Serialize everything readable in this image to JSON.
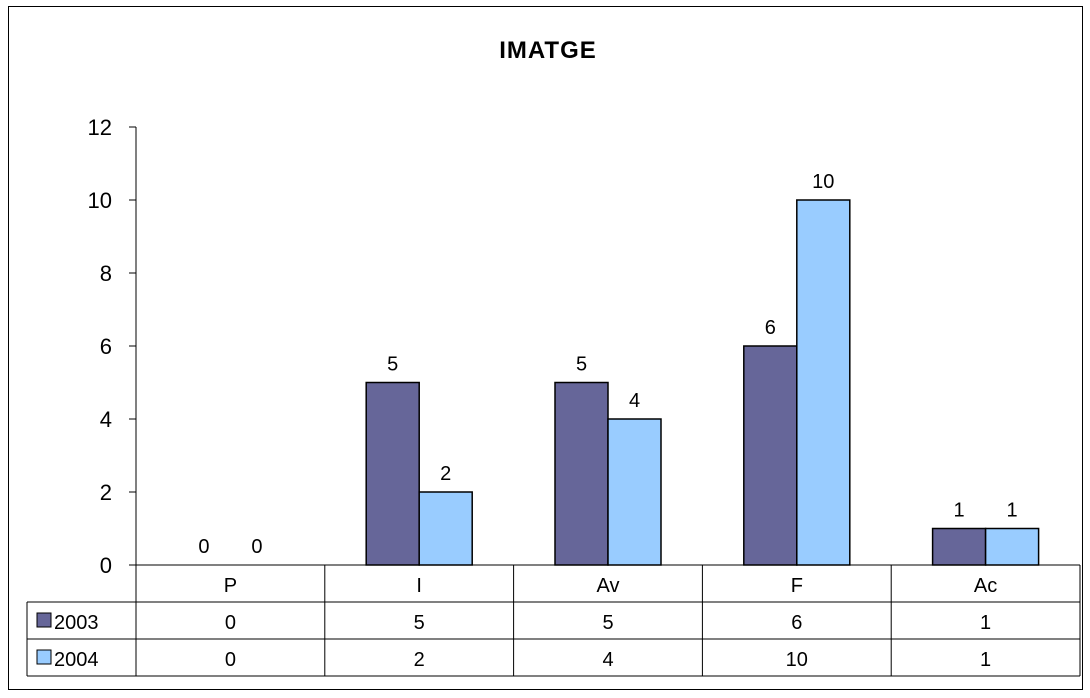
{
  "chart_data": {
    "type": "bar",
    "title": "IMATGE",
    "categories": [
      "P",
      "I",
      "Av",
      "F",
      "Ac"
    ],
    "series": [
      {
        "name": "2003",
        "values": [
          0,
          5,
          5,
          6,
          1
        ],
        "color": "#666699"
      },
      {
        "name": "2004",
        "values": [
          0,
          2,
          4,
          10,
          1
        ],
        "color": "#99ccff"
      }
    ],
    "ylim": [
      0,
      12
    ],
    "yticks": [
      0,
      2,
      4,
      6,
      8,
      10,
      12
    ],
    "grid": false,
    "data_labels": true,
    "legend": "data-table"
  }
}
